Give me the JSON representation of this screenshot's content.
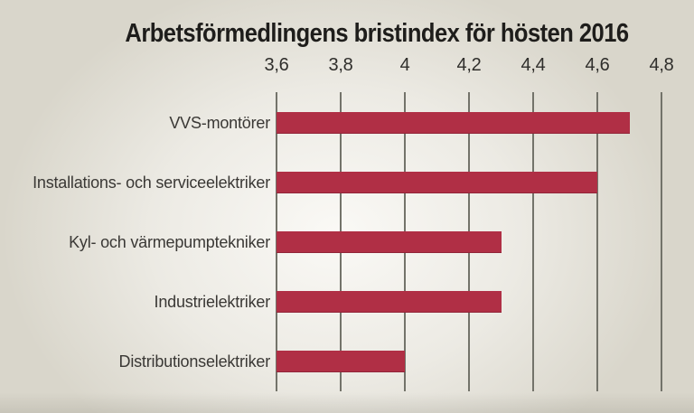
{
  "title": "Arbetsförmedlingens bristindex för hösten 2016",
  "chart_data": {
    "type": "bar",
    "orientation": "horizontal",
    "title": "Arbetsförmedlingens bristindex för hösten 2016",
    "categories": [
      "VVS-montörer",
      "Installations- och serviceelektriker",
      "Kyl- och värmepumptekniker",
      "Industrielektriker",
      "Distributionselektriker"
    ],
    "values": [
      4.7,
      4.6,
      4.3,
      4.3,
      4.0
    ],
    "xlabel": "",
    "ylabel": "",
    "xlim": [
      3.6,
      4.8
    ],
    "x_ticks": [
      3.6,
      3.8,
      4.0,
      4.2,
      4.4,
      4.6,
      4.8
    ],
    "x_tick_labels": [
      "3,6",
      "3,8",
      "4",
      "4,2",
      "4,4",
      "4,6",
      "4,8"
    ],
    "grid": true,
    "legend": false
  },
  "colors": {
    "background": "#d9d6cb",
    "background_highlight": "#fcfbf8",
    "bar": "#b02f45",
    "grid_line": "#73736a",
    "title_text": "#1e1d1b",
    "tick_text": "#2f2e2b",
    "category_text": "#3a3835"
  }
}
